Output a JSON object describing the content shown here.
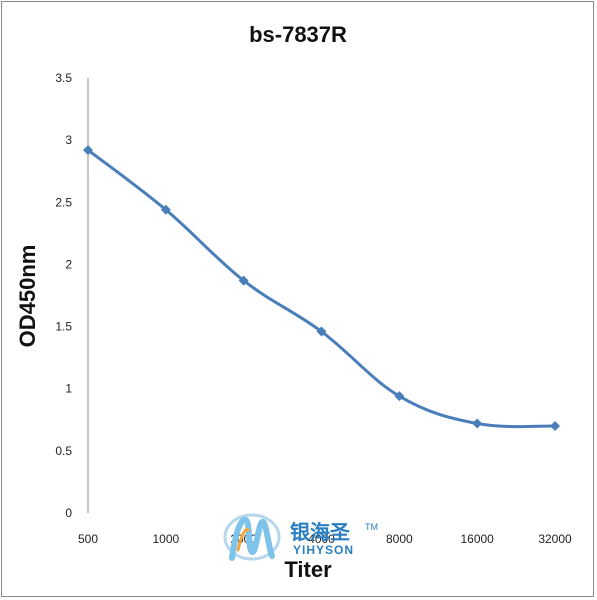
{
  "chart_data": {
    "type": "line",
    "title": "bs-7837R",
    "xlabel": "Titer",
    "ylabel": "OD450nm",
    "categories": [
      "500",
      "1000",
      "2000",
      "4000",
      "8000",
      "16000",
      "32000"
    ],
    "series": [
      {
        "values": [
          2.92,
          2.44,
          1.87,
          1.46,
          0.94,
          0.72,
          0.7
        ]
      }
    ],
    "ylim": [
      0,
      3.5
    ],
    "yticks": [
      "0",
      "0.5",
      "1",
      "1.5",
      "2",
      "2.5",
      "3",
      "3.5"
    ],
    "grid": false,
    "legend": "none",
    "line_color": "#4a7ebb"
  },
  "watermark": {
    "text_cn": "银海圣",
    "text_en": "YIHYSON",
    "tm": "TM"
  }
}
